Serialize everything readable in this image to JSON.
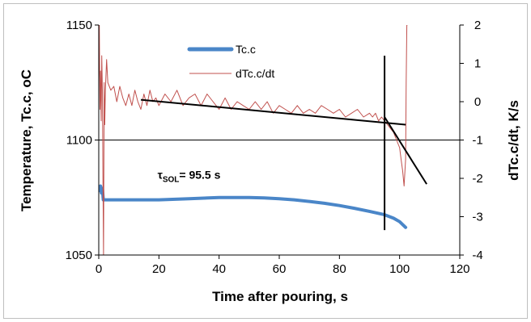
{
  "chart_data": {
    "type": "line",
    "xlabel": "Time after pouring, s",
    "ylabel_left": "Temperature, Tc.c, oC",
    "ylabel_right": "dTc.c/dt, K/s",
    "xlim": [
      0,
      120
    ],
    "ylim_left": [
      1050,
      1150
    ],
    "ylim_right": [
      -4,
      2
    ],
    "x_ticks": [
      "0",
      "20",
      "40",
      "60",
      "80",
      "100",
      "120"
    ],
    "y_left_ticks": [
      "1050",
      "1100",
      "1150"
    ],
    "y_right_ticks": [
      "-4",
      "-3",
      "-2",
      "-1",
      "0",
      "1",
      "2"
    ],
    "grid": false,
    "legend_position": "top-center",
    "series": [
      {
        "name": "Tc.c",
        "axis": "left",
        "color": "#4a86c8",
        "x": [
          0.3,
          0.6,
          0.9,
          1.2,
          1.5,
          2,
          3,
          5,
          10,
          20,
          30,
          40,
          45,
          50,
          55,
          60,
          65,
          70,
          75,
          80,
          85,
          90,
          95,
          98,
          100,
          102
        ],
        "y": [
          1078,
          1080,
          1077,
          1079,
          1074,
          1074,
          1074,
          1074,
          1074,
          1074,
          1074.5,
          1075,
          1075,
          1075,
          1074.8,
          1074.5,
          1074,
          1073.3,
          1072.5,
          1071.5,
          1070.3,
          1069,
          1067.5,
          1066,
          1064.5,
          1062
        ]
      },
      {
        "name": "dTc.c/dt",
        "axis": "right",
        "color": "#c0504d",
        "x": [
          0,
          0.2,
          0.4,
          0.6,
          0.8,
          1.0,
          1.2,
          1.4,
          1.6,
          1.8,
          2.0,
          2.2,
          2.6,
          3,
          4,
          5,
          6,
          7,
          8,
          9,
          10,
          11,
          12,
          13,
          14,
          15,
          16,
          17,
          18,
          19,
          20,
          22,
          24,
          26,
          28,
          30,
          32,
          34,
          36,
          38,
          40,
          42,
          44,
          46,
          48,
          50,
          52,
          54,
          56,
          58,
          60,
          62,
          64,
          66,
          68,
          70,
          72,
          74,
          76,
          78,
          80,
          82,
          84,
          86,
          88,
          90,
          91,
          92,
          93,
          94,
          95,
          96,
          97,
          98,
          99,
          100,
          100.5,
          101,
          101.5,
          102,
          102.2,
          102.4,
          102.5
        ],
        "y": [
          0.6,
          2.0,
          -0.2,
          0.8,
          -0.5,
          1.2,
          0.3,
          -2.0,
          -4.0,
          0.5,
          -0.6,
          0.3,
          1.1,
          0.5,
          0.3,
          0.4,
          0.0,
          0.4,
          0.1,
          -0.1,
          0.2,
          -0.1,
          0.3,
          0.0,
          -0.2,
          0.2,
          -0.1,
          0.3,
          0.0,
          0.1,
          -0.1,
          0.2,
          0.0,
          0.3,
          -0.1,
          0.1,
          0.2,
          -0.1,
          0.2,
          0.0,
          -0.2,
          0.1,
          -0.2,
          0.0,
          -0.1,
          -0.2,
          0.0,
          -0.2,
          0.0,
          -0.3,
          -0.1,
          -0.2,
          -0.3,
          -0.1,
          -0.3,
          -0.2,
          -0.3,
          -0.1,
          -0.2,
          -0.3,
          -0.2,
          -0.4,
          -0.3,
          -0.2,
          -0.4,
          -0.3,
          -0.4,
          -0.3,
          -0.5,
          -0.4,
          -0.5,
          -0.6,
          -0.7,
          -0.8,
          -1.0,
          -1.2,
          -1.5,
          -1.8,
          -2.2,
          -1.5,
          0.5,
          2.0,
          2.0
        ]
      }
    ],
    "annotation": {
      "text_tau": "τ",
      "text_sub": "SOL",
      "text_value": "= 95.5 s",
      "x": 12,
      "y_left": 1085
    },
    "construction_lines": [
      {
        "axis": "right",
        "x": [
          14,
          102
        ],
        "y": [
          0.05,
          -0.6
        ]
      },
      {
        "axis": "right",
        "x": [
          95,
          109
        ],
        "y": [
          -0.4,
          -2.15
        ]
      },
      {
        "axis": "right",
        "x": [
          95,
          95
        ],
        "y": [
          1.2,
          -3.35
        ]
      }
    ],
    "reference_line": {
      "axis": "left",
      "y": 1100
    }
  }
}
